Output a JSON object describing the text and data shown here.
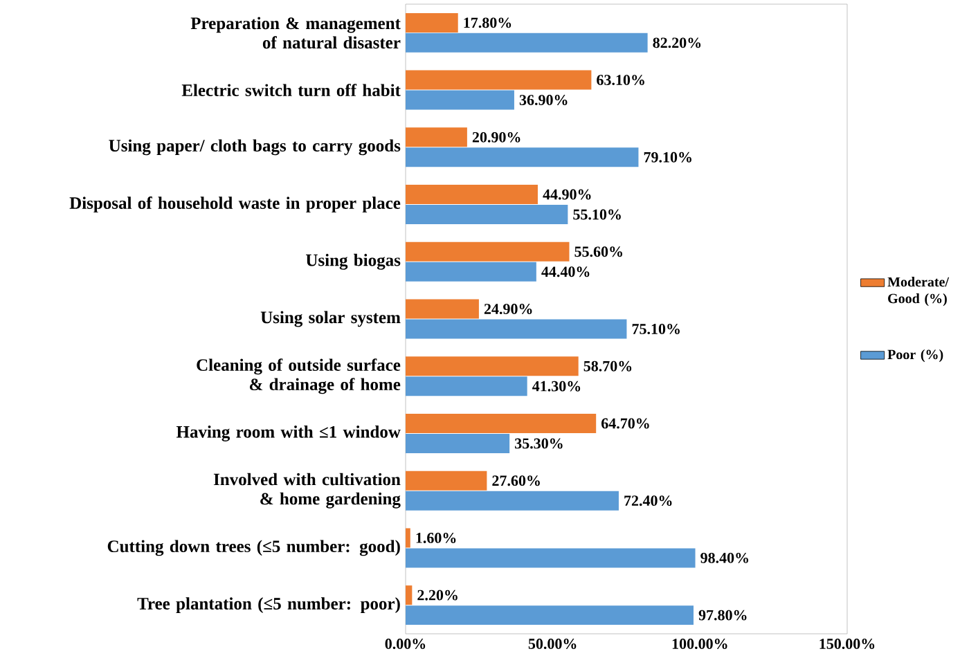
{
  "chart_data": {
    "type": "bar",
    "orientation": "horizontal",
    "categories": [
      "Preparation & management of natural disaster",
      "Electric switch turn off habit",
      "Using paper/ cloth bags to carry goods",
      "Disposal of household waste in proper place",
      "Using biogas",
      "Using solar system",
      "Cleaning of outside surface & drainage of home",
      "Having room with ≤1 window",
      "Involved with cultivation & home gardening",
      "Cutting down trees (≤5 number: good)",
      "Tree plantation (≤5 number: poor)"
    ],
    "series": [
      {
        "name": "Moderate/ Good (%)",
        "color": "#ed7d31",
        "values": [
          17.8,
          63.1,
          20.9,
          44.9,
          55.6,
          24.9,
          58.7,
          64.7,
          27.6,
          1.6,
          2.2
        ],
        "value_labels": [
          "17.80%",
          "63.10%",
          "20.90%",
          "44.90%",
          "55.60%",
          "24.90%",
          "58.70%",
          "64.70%",
          "27.60%",
          "1.60%",
          "2.20%"
        ]
      },
      {
        "name": "Poor (%)",
        "color": "#5b9bd5",
        "values": [
          82.2,
          36.9,
          79.1,
          55.1,
          44.4,
          75.1,
          41.3,
          35.3,
          72.4,
          98.4,
          97.8
        ],
        "value_labels": [
          "82.20%",
          "36.90%",
          "79.10%",
          "55.10%",
          "44.40%",
          "75.10%",
          "41.30%",
          "35.30%",
          "72.40%",
          "98.40%",
          "97.80%"
        ]
      }
    ],
    "xlim": [
      0,
      150
    ],
    "xticks": [
      {
        "value": 0,
        "label": "0.00%"
      },
      {
        "value": 50,
        "label": "50.00%"
      },
      {
        "value": 100,
        "label": "100.00%"
      },
      {
        "value": 150,
        "label": "150.00%"
      }
    ],
    "legend": "right"
  }
}
